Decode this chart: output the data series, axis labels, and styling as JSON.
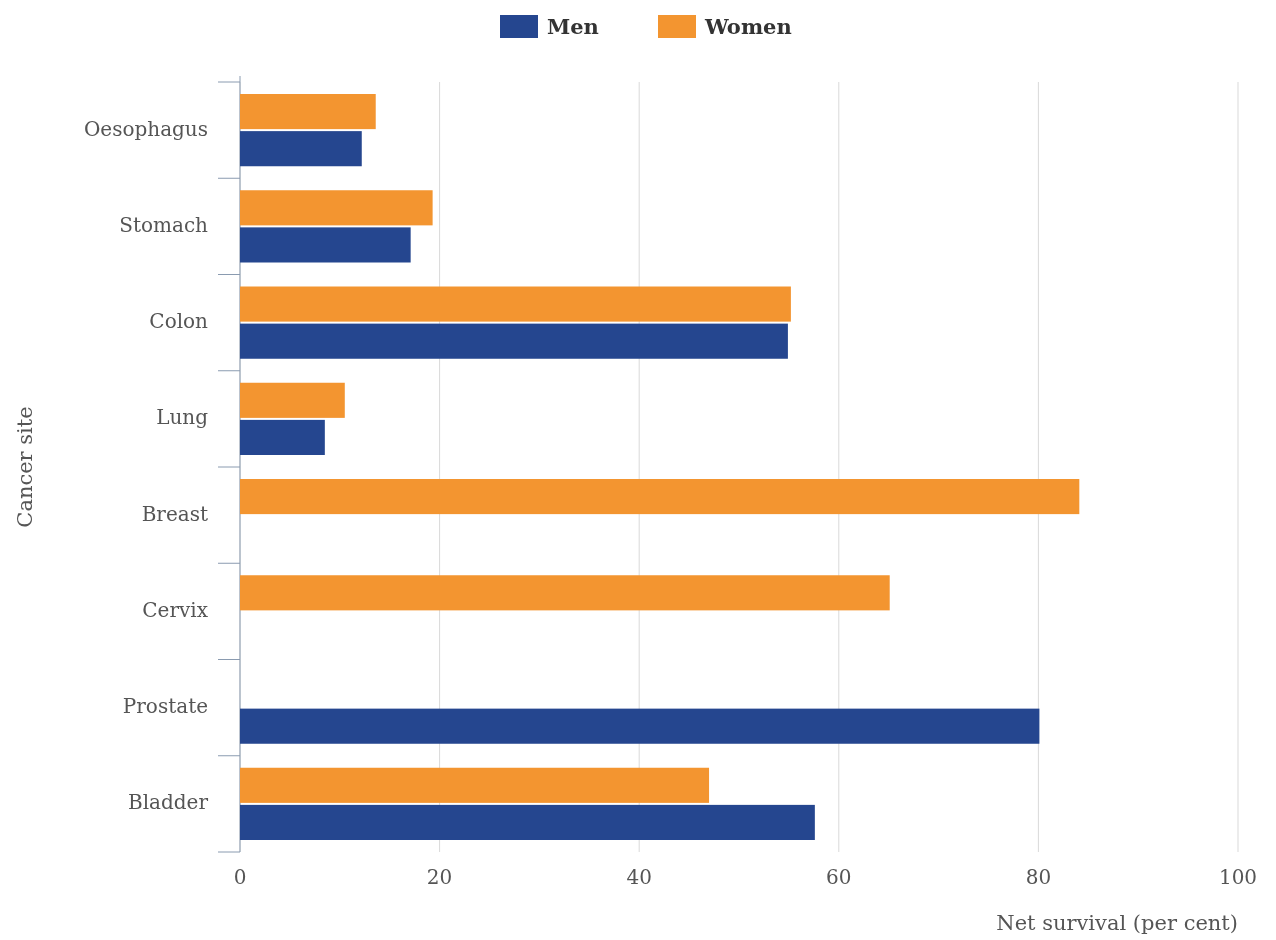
{
  "chart_data": {
    "type": "bar",
    "orientation": "horizontal",
    "xlabel": "Net survival (per cent)",
    "ylabel": "Cancer site",
    "categories": [
      "Oesophagus",
      "Stomach",
      "Colon",
      "Lung",
      "Breast",
      "Cervix",
      "Prostate",
      "Bladder"
    ],
    "series": [
      {
        "name": "Men",
        "color": "#25468f",
        "values": [
          12.2,
          17.1,
          54.9,
          8.5,
          null,
          null,
          80.1,
          57.6
        ]
      },
      {
        "name": "Women",
        "color": "#f39530",
        "values": [
          13.6,
          19.3,
          55.2,
          10.5,
          84.1,
          65.1,
          null,
          47.0
        ]
      }
    ],
    "xlim": [
      0,
      100
    ],
    "xticks": [
      0,
      20,
      40,
      60,
      80,
      100
    ],
    "grid": "x",
    "legend": "top"
  }
}
